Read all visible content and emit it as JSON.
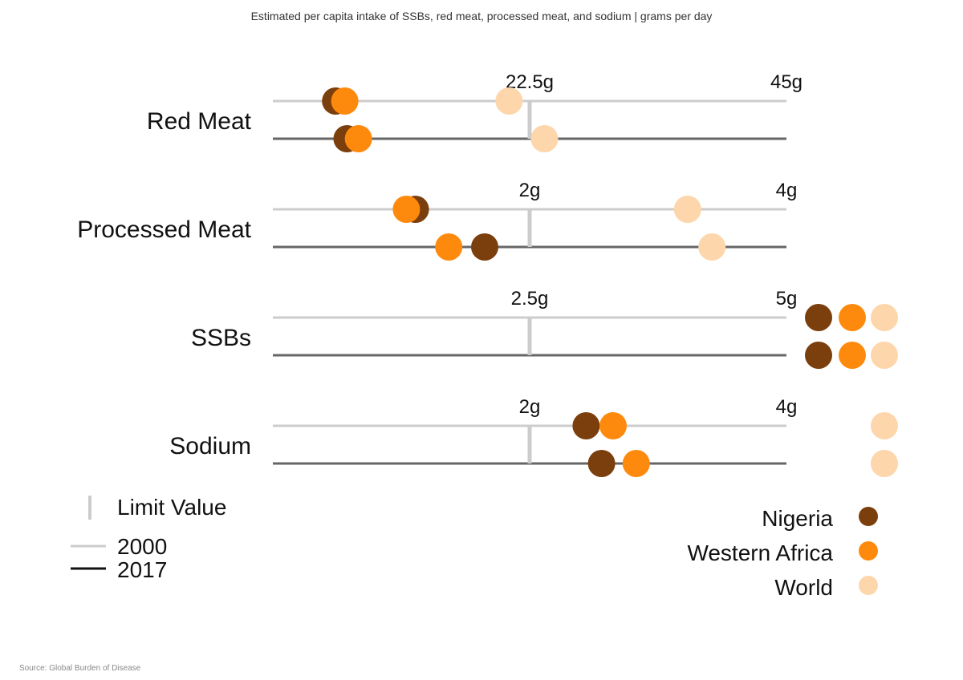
{
  "title": "Estimated per capita intake of SSBs, red meat, processed meat, and sodium | grams per day",
  "source": "Source: Global Burden of Disease",
  "colors": {
    "Nigeria": "#7a3f0c",
    "Western Africa": "#fe8a0d",
    "World": "#fdd6ab",
    "line2000": "#cccccc",
    "line2017": "#666666",
    "limit": "#cccccc"
  },
  "chart_data": {
    "type": "scatter",
    "title": "Estimated per capita intake of SSBs, red meat, processed meat, and sodium | grams per day",
    "years": [
      "2000",
      "2017"
    ],
    "series_names": [
      "Nigeria",
      "Western Africa",
      "World"
    ],
    "panels": [
      {
        "name": "Red Meat",
        "limit": 22.5,
        "limit_label": "22.5g",
        "max": 45,
        "max_label": "45g",
        "rows": [
          {
            "year": "2000",
            "values": {
              "Nigeria": 5.5,
              "Western Africa": 6.3,
              "World": 20.7
            }
          },
          {
            "year": "2017",
            "values": {
              "Nigeria": 6.5,
              "Western Africa": 7.5,
              "World": 23.8
            }
          }
        ]
      },
      {
        "name": "Processed Meat",
        "limit": 2,
        "limit_label": "2g",
        "max": 4,
        "max_label": "4g",
        "rows": [
          {
            "year": "2000",
            "values": {
              "Nigeria": 1.11,
              "Western Africa": 1.04,
              "World": 3.23
            }
          },
          {
            "year": "2017",
            "values": {
              "Nigeria": 1.65,
              "Western Africa": 1.37,
              "World": 3.42
            }
          }
        ]
      },
      {
        "name": "SSBs",
        "limit": 2.5,
        "limit_label": "2.5g",
        "max": 5,
        "max_label": "5g",
        "rows": [
          {
            "year": "2000",
            "values": {
              "Nigeria": ">5",
              "Western Africa": ">5",
              "World": ">5"
            }
          },
          {
            "year": "2017",
            "values": {
              "Nigeria": ">5",
              "Western Africa": ">5",
              "World": ">5"
            }
          }
        ]
      },
      {
        "name": "Sodium",
        "limit": 2,
        "limit_label": "2g",
        "max": 4,
        "max_label": "4g",
        "rows": [
          {
            "year": "2000",
            "values": {
              "Nigeria": 2.44,
              "Western Africa": 2.65,
              "World": ">4"
            }
          },
          {
            "year": "2017",
            "values": {
              "Nigeria": 2.56,
              "Western Africa": 2.83,
              "World": ">4"
            }
          }
        ]
      }
    ],
    "legend": {
      "limit": "Limit Value",
      "year2000": "2000",
      "year2017": "2017",
      "entries": [
        "Nigeria",
        "Western Africa",
        "World"
      ]
    }
  }
}
